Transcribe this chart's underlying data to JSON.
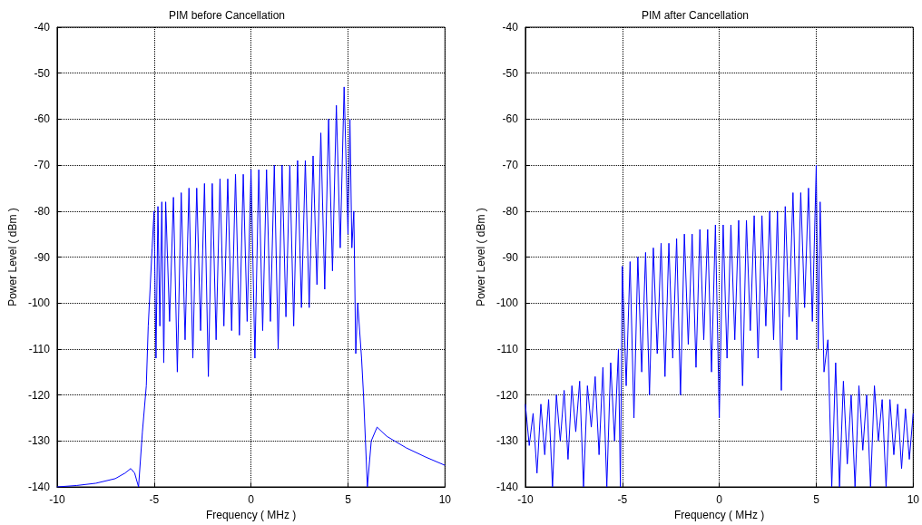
{
  "chart_data": [
    {
      "type": "line",
      "title": "PIM before Cancellation",
      "xlabel": "Frequency ( MHz )",
      "ylabel": "Power Level ( dBm )",
      "xlim": [
        -10,
        10
      ],
      "xticks": [
        -10,
        -5,
        0,
        5,
        10
      ],
      "ylim": [
        -140,
        -40
      ],
      "yticks": [
        -140,
        -130,
        -120,
        -110,
        -100,
        -90,
        -80,
        -70,
        -60,
        -50,
        -40
      ],
      "grid": true,
      "marker": "none",
      "line_style": "solid",
      "series": [
        {
          "color": "#0000ff",
          "x": [
            -10,
            -9,
            -8,
            -7,
            -6.5,
            -6.2,
            -6.0,
            -5.8,
            -5.6,
            -5.4,
            -5.3,
            -5.1,
            -5.0,
            -4.9,
            -4.8,
            -4.7,
            -4.6,
            -4.5,
            -4.4,
            -4.2,
            -4.0,
            -3.8,
            -3.6,
            -3.4,
            -3.2,
            -3.0,
            -2.8,
            -2.6,
            -2.4,
            -2.2,
            -2.0,
            -1.8,
            -1.6,
            -1.4,
            -1.2,
            -1.0,
            -0.8,
            -0.6,
            -0.4,
            -0.2,
            0,
            0.2,
            0.4,
            0.6,
            0.8,
            1.0,
            1.2,
            1.4,
            1.6,
            1.8,
            2.0,
            2.2,
            2.4,
            2.6,
            2.8,
            3.0,
            3.2,
            3.4,
            3.6,
            3.8,
            4.0,
            4.2,
            4.4,
            4.6,
            4.8,
            5.0,
            5.1,
            5.2,
            5.3,
            5.4,
            5.5,
            5.7,
            5.8,
            6.0,
            6.2,
            6.5,
            7,
            8,
            9,
            10
          ],
          "values": [
            -140,
            -139.7,
            -139.2,
            -138.2,
            -137,
            -136,
            -137,
            -140,
            -128,
            -118,
            -105,
            -88,
            -80,
            -112,
            -79,
            -105,
            -78,
            -113,
            -78,
            -104,
            -77,
            -115,
            -76,
            -108,
            -75,
            -112,
            -75,
            -106,
            -74,
            -116,
            -74,
            -108,
            -73,
            -105,
            -73,
            -106,
            -72,
            -107,
            -72,
            -104,
            -71,
            -112,
            -71,
            -106,
            -71,
            -104,
            -70,
            -110,
            -70,
            -103,
            -70,
            -105,
            -69,
            -101,
            -69,
            -101,
            -68,
            -96,
            -63,
            -97,
            -60,
            -93,
            -57,
            -88,
            -53,
            -85,
            -60,
            -88,
            -80,
            -111,
            -100,
            -112,
            -120,
            -140,
            -130,
            -127,
            -129,
            -131.5,
            -133.5,
            -135.3
          ]
        }
      ]
    },
    {
      "type": "line",
      "title": "PIM after Cancellation",
      "xlabel": "Frequency ( MHz )",
      "ylabel": "Power Level ( dBm )",
      "xlim": [
        -10,
        10
      ],
      "xticks": [
        -10,
        -5,
        0,
        5,
        10
      ],
      "ylim": [
        -140,
        -40
      ],
      "yticks": [
        -140,
        -130,
        -120,
        -110,
        -100,
        -90,
        -80,
        -70,
        -60,
        -50,
        -40
      ],
      "grid": true,
      "marker": "none",
      "line_style": "solid",
      "series": [
        {
          "color": "#0000ff",
          "x": [
            -10,
            -9.8,
            -9.6,
            -9.4,
            -9.2,
            -9.0,
            -8.8,
            -8.6,
            -8.4,
            -8.2,
            -8.0,
            -7.8,
            -7.6,
            -7.4,
            -7.2,
            -7.0,
            -6.8,
            -6.6,
            -6.4,
            -6.2,
            -6.0,
            -5.8,
            -5.6,
            -5.4,
            -5.2,
            -5.1,
            -5.0,
            -4.8,
            -4.6,
            -4.4,
            -4.2,
            -4.0,
            -3.8,
            -3.6,
            -3.4,
            -3.2,
            -3.0,
            -2.8,
            -2.6,
            -2.4,
            -2.2,
            -2.0,
            -1.8,
            -1.6,
            -1.4,
            -1.2,
            -1.0,
            -0.8,
            -0.6,
            -0.4,
            -0.2,
            0,
            0.2,
            0.4,
            0.6,
            0.8,
            1.0,
            1.2,
            1.4,
            1.6,
            1.8,
            2.0,
            2.2,
            2.4,
            2.6,
            2.8,
            3.0,
            3.2,
            3.4,
            3.6,
            3.8,
            4.0,
            4.2,
            4.4,
            4.6,
            4.8,
            5.0,
            5.1,
            5.2,
            5.4,
            5.6,
            5.8,
            6.0,
            6.2,
            6.4,
            6.6,
            6.8,
            7.0,
            7.2,
            7.4,
            7.6,
            7.8,
            8.0,
            8.2,
            8.4,
            8.6,
            8.8,
            9.0,
            9.2,
            9.4,
            9.6,
            9.8,
            10
          ],
          "values": [
            -122,
            -131,
            -124,
            -137,
            -122,
            -133,
            -121,
            -140,
            -120,
            -130,
            -119,
            -134,
            -118,
            -128,
            -117,
            -140,
            -118,
            -127,
            -116,
            -133,
            -114,
            -140,
            -113,
            -130,
            -110,
            -140,
            -92,
            -118,
            -91,
            -125,
            -90,
            -115,
            -89,
            -120,
            -88,
            -111,
            -87,
            -116,
            -87,
            -112,
            -86,
            -120,
            -85,
            -109,
            -85,
            -114,
            -84,
            -108,
            -84,
            -115,
            -83,
            -125,
            -83,
            -112,
            -83,
            -108,
            -82,
            -118,
            -82,
            -106,
            -81,
            -112,
            -81,
            -105,
            -80,
            -108,
            -80,
            -119,
            -79,
            -103,
            -76,
            -108,
            -76,
            -101,
            -75,
            -104,
            -70,
            -110,
            -78,
            -115,
            -108,
            -140,
            -113,
            -140,
            -117,
            -135,
            -120,
            -140,
            -118,
            -132,
            -120,
            -140,
            -118,
            -130,
            -121,
            -140,
            -121,
            -133,
            -122,
            -136,
            -123,
            -134,
            -124
          ]
        }
      ]
    }
  ]
}
